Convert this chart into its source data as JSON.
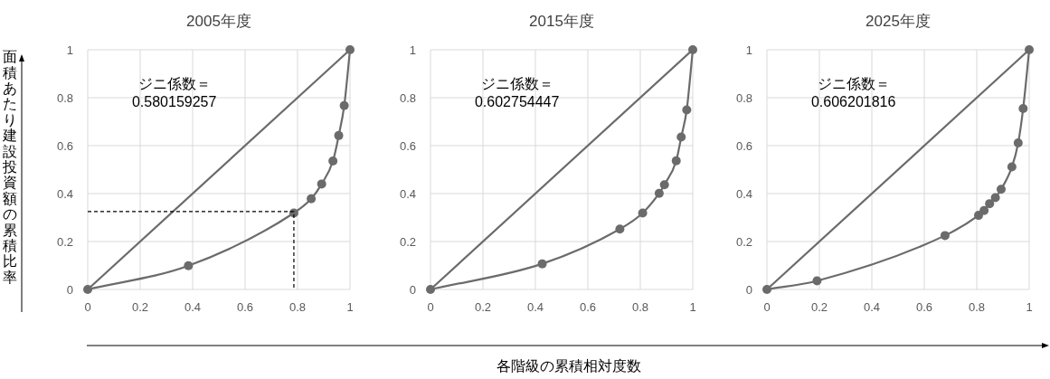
{
  "chart_data": [
    {
      "type": "line",
      "title": "2005年度",
      "ylabel": "面積あたり建設投資額の累積比率",
      "xlim": [
        0,
        1
      ],
      "ylim": [
        0,
        1
      ],
      "xticks": [
        0,
        0.2,
        0.4,
        0.6,
        0.8,
        1
      ],
      "yticks": [
        0,
        0.2,
        0.4,
        0.6,
        0.8,
        1
      ],
      "grid": true,
      "annotations": [
        "ジニ係数＝\n0.580159257"
      ],
      "series": [
        {
          "color": "#6b6b6b",
          "marker": "circle",
          "line_style": "solid",
          "x": [
            0,
            0.384,
            0.786,
            0.852,
            0.892,
            0.935,
            0.957,
            0.978,
            1
          ],
          "values": [
            0,
            0.099,
            0.319,
            0.378,
            0.44,
            0.536,
            0.642,
            0.767,
            1
          ]
        },
        {
          "color": "#6b6b6b",
          "marker": "none",
          "line_style": "solid",
          "x": [
            0,
            1
          ],
          "values": [
            0,
            1
          ]
        },
        {
          "color": "#000000",
          "marker": "none",
          "line_style": "dashed",
          "x": [
            0,
            0.786,
            0.786
          ],
          "values": [
            0.325,
            0.325,
            0
          ]
        }
      ]
    },
    {
      "type": "line",
      "title": "2015年度",
      "xlabel": "各階級の累積相対度数",
      "xlim": [
        0,
        1
      ],
      "ylim": [
        0,
        1
      ],
      "xticks": [
        0,
        0.2,
        0.4,
        0.6,
        0.8,
        1
      ],
      "yticks": [
        0,
        0.2,
        0.4,
        0.6,
        0.8,
        1
      ],
      "grid": true,
      "annotations": [
        "ジニ係数＝\n0.602754447"
      ],
      "series": [
        {
          "color": "#6b6b6b",
          "marker": "circle",
          "line_style": "solid",
          "x": [
            0,
            0.426,
            0.722,
            0.809,
            0.872,
            0.892,
            0.937,
            0.956,
            0.977,
            1
          ],
          "values": [
            0,
            0.107,
            0.252,
            0.319,
            0.401,
            0.437,
            0.537,
            0.636,
            0.749,
            1
          ]
        },
        {
          "color": "#6b6b6b",
          "marker": "none",
          "line_style": "solid",
          "x": [
            0,
            1
          ],
          "values": [
            0,
            1
          ]
        }
      ]
    },
    {
      "type": "line",
      "title": "2025年度",
      "xlim": [
        0,
        1
      ],
      "ylim": [
        0,
        1
      ],
      "xticks": [
        0,
        0.2,
        0.4,
        0.6,
        0.8,
        1
      ],
      "yticks": [
        0,
        0.2,
        0.4,
        0.6,
        0.8,
        1
      ],
      "grid": true,
      "annotations": [
        "ジニ係数＝\n0.606201816"
      ],
      "series": [
        {
          "color": "#6b6b6b",
          "marker": "circle",
          "line_style": "solid",
          "x": [
            0,
            0.191,
            0.679,
            0.807,
            0.828,
            0.849,
            0.871,
            0.893,
            0.934,
            0.958,
            0.977,
            1
          ],
          "values": [
            0,
            0.036,
            0.225,
            0.309,
            0.329,
            0.358,
            0.383,
            0.418,
            0.511,
            0.611,
            0.755,
            1
          ]
        },
        {
          "color": "#6b6b6b",
          "marker": "none",
          "line_style": "solid",
          "x": [
            0,
            1
          ],
          "values": [
            0,
            1
          ]
        }
      ]
    }
  ]
}
